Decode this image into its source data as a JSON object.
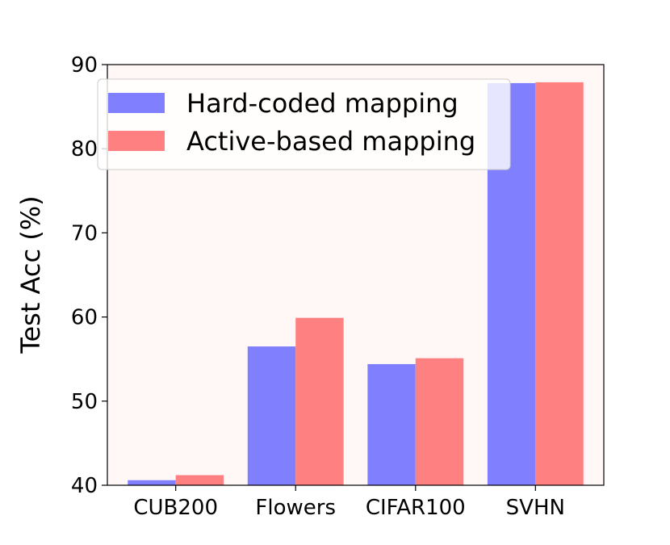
{
  "chart_data": {
    "type": "bar",
    "categories": [
      "CUB200",
      "Flowers",
      "CIFAR100",
      "SVHN"
    ],
    "series": [
      {
        "name": "Hard-coded mapping",
        "values": [
          40.6,
          56.5,
          54.4,
          87.8
        ],
        "color": "#8080ff"
      },
      {
        "name": "Active-based mapping",
        "values": [
          41.2,
          59.9,
          55.1,
          87.9
        ],
        "color": "#ff8080"
      }
    ],
    "ylabel": "Test Acc (%)",
    "xlabel": "",
    "ylim": [
      40,
      90
    ],
    "yticks": [
      "40",
      "50",
      "60",
      "70",
      "80",
      "90"
    ],
    "legend_position": "top-left",
    "background_color": "#fff8f6",
    "grid": false
  }
}
